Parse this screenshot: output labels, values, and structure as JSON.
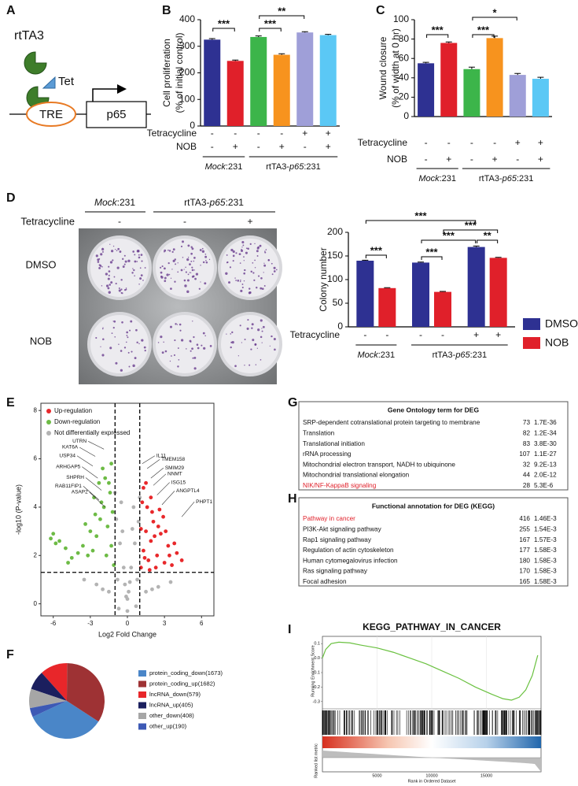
{
  "diagram": {
    "panel": "A",
    "protein": "rtTA3",
    "drug": "Tet",
    "promoter": "TRE",
    "gene": "p65"
  },
  "plate": {
    "panel": "D",
    "headers": [
      [
        {
          "text": "Mock",
          "italic": true
        },
        {
          "text": ":231"
        }
      ],
      [
        {
          "text": "rtTA3-"
        },
        {
          "text": "p65",
          "italic": true
        },
        {
          "text": ":231"
        }
      ]
    ],
    "row_label": "Tetracycline",
    "signs": [
      "-",
      "-",
      "+"
    ],
    "rows": [
      "DMSO",
      "NOB"
    ]
  },
  "chart_data": [
    {
      "type": "bar",
      "panel": "B",
      "ylabel": [
        "Cell proliferation",
        "(% of initial control)"
      ],
      "values": [
        325,
        245,
        335,
        268,
        352,
        342
      ],
      "errors": [
        4,
        3,
        4,
        4,
        3,
        3
      ],
      "colors": [
        "#2e3192",
        "#e0202a",
        "#3cb54a",
        "#f7931e",
        "#9f9fd8",
        "#5bc8f5"
      ],
      "ylim": [
        0,
        400
      ],
      "yticks": [
        0,
        100,
        200,
        300,
        400
      ],
      "rows": [
        {
          "label": "Tetracycline",
          "signs": [
            "-",
            "-",
            "-",
            "-",
            "+",
            "+"
          ]
        },
        {
          "label": "NOB",
          "signs": [
            "-",
            "+",
            "-",
            "+",
            "-",
            "+"
          ]
        }
      ],
      "groups": [
        [
          {
            "text": "Mock",
            "italic": true
          },
          {
            "text": ":231"
          }
        ],
        [
          {
            "text": "rtTA3-"
          },
          {
            "text": "p65",
            "italic": true
          },
          {
            "text": ":231"
          }
        ]
      ],
      "significance": [
        "***",
        "***",
        "**"
      ]
    },
    {
      "type": "bar",
      "panel": "C",
      "ylabel": [
        "Wound closure",
        "(% of width at 0 hr)"
      ],
      "values": [
        55,
        76,
        49,
        81,
        43,
        39
      ],
      "errors": [
        1,
        1,
        2,
        2,
        1.5,
        1.5
      ],
      "colors": [
        "#2e3192",
        "#e0202a",
        "#3cb54a",
        "#f7931e",
        "#9f9fd8",
        "#5bc8f5"
      ],
      "ylim": [
        0,
        100
      ],
      "yticks": [
        0,
        20,
        40,
        60,
        80,
        100
      ],
      "rows": [
        {
          "label": "Tetracycline",
          "signs": [
            "-",
            "-",
            "-",
            "-",
            "+",
            "+"
          ]
        },
        {
          "label": "NOB",
          "signs": [
            "-",
            "+",
            "-",
            "+",
            "-",
            "+"
          ]
        }
      ],
      "groups": [
        [
          {
            "text": "Mock",
            "italic": true
          },
          {
            "text": ":231"
          }
        ],
        [
          {
            "text": "rtTA3-"
          },
          {
            "text": "p65",
            "italic": true
          },
          {
            "text": ":231"
          }
        ]
      ],
      "significance": [
        "***",
        "***",
        "*"
      ]
    },
    {
      "type": "grouped_bar",
      "ylabel": "Colony number",
      "series": [
        {
          "name": "DMSO",
          "color": "#2e3192",
          "values": [
            140,
            136,
            169
          ],
          "errors": [
            1,
            1,
            2
          ]
        },
        {
          "name": "NOB",
          "color": "#e0202a",
          "values": [
            82,
            74,
            146
          ],
          "errors": [
            1,
            1,
            1
          ]
        }
      ],
      "ylim": [
        0,
        200
      ],
      "yticks": [
        0,
        50,
        100,
        150,
        200
      ],
      "rows": [
        {
          "label": "Tetracycline",
          "signs": [
            "-",
            "-",
            "-",
            "-",
            "+",
            "+"
          ]
        }
      ],
      "groups": [
        [
          {
            "text": "Mock",
            "italic": true
          },
          {
            "text": ":231"
          }
        ],
        [
          {
            "text": "rtTA3-"
          },
          {
            "text": "p65",
            "italic": true
          },
          {
            "text": ":231"
          }
        ]
      ],
      "significance": [
        "***",
        "***",
        "***",
        "**",
        "***",
        "***"
      ],
      "legend": "right"
    },
    {
      "type": "scatter",
      "panel": "E",
      "xlabel": "Log2 Fold Change",
      "ylabel": "-log10 (P-value)",
      "xlim": [
        -7,
        7
      ],
      "ylim": [
        -0.5,
        8.3
      ],
      "xticks": [
        -6,
        -3,
        0,
        3,
        6
      ],
      "yticks": [
        0,
        2,
        4,
        6,
        8
      ],
      "thresholds": {
        "x": [
          -1,
          1
        ],
        "y": 1.3
      },
      "legend": "top-left",
      "series": [
        {
          "name": "Up-regulation",
          "color": "#e8282b",
          "x": [
            1.1,
            1.3,
            1.5,
            1.7,
            1.9,
            2.1,
            2.4,
            2.7,
            3.0,
            3.3,
            3.6,
            4.0,
            4.4,
            1.2,
            1.6,
            2.0,
            2.5,
            3.1,
            3.8,
            1.4,
            2.2,
            2.9,
            1.8,
            1.1,
            1.3,
            1.9,
            2.6,
            3.4,
            1.5,
            2.3
          ],
          "values": [
            1.5,
            2.2,
            3.0,
            1.8,
            2.6,
            3.4,
            2.0,
            2.9,
            1.7,
            2.4,
            1.6,
            2.1,
            1.8,
            4.2,
            4.0,
            3.8,
            3.2,
            3.0,
            2.5,
            1.9,
            2.8,
            3.6,
            1.4,
            3.1,
            4.8,
            4.4,
            3.9,
            2.0,
            5.0,
            1.5
          ]
        },
        {
          "name": "Down-regulation",
          "color": "#6dbb45",
          "x": [
            -1.1,
            -1.3,
            -1.6,
            -1.9,
            -2.2,
            -2.5,
            -2.8,
            -3.2,
            -3.6,
            -4.0,
            -4.5,
            -5.0,
            -5.5,
            -6.0,
            -1.4,
            -1.8,
            -2.3,
            -2.7,
            -1.2,
            -3.0,
            -2.0,
            -1.5,
            -2.6,
            -1.7,
            -5.8,
            -4.8,
            -3.4,
            -2.1,
            -1.3,
            -6.2
          ],
          "values": [
            1.6,
            2.4,
            3.2,
            4.0,
            3.5,
            2.8,
            2.2,
            2.0,
            2.4,
            2.1,
            1.9,
            2.3,
            2.6,
            2.9,
            4.6,
            5.2,
            5.0,
            4.4,
            3.8,
            3.0,
            5.6,
            5.0,
            3.7,
            2.0,
            2.5,
            1.7,
            3.3,
            4.2,
            5.8,
            2.7
          ]
        },
        {
          "name": "Not differentially expressed",
          "color": "#b3b3b3",
          "x": [
            -0.9,
            -0.6,
            -0.3,
            0,
            0.3,
            0.6,
            0.9,
            -0.5,
            0.5,
            -0.8,
            0.8,
            -0.2,
            0.2,
            -1.5,
            1.5,
            -2.5,
            2.5,
            -3.5,
            3.5,
            -0.4,
            0.4,
            -0.7,
            0.7,
            0.1,
            -0.1,
            -1.0,
            1.0,
            -2.0,
            2.0,
            0
          ],
          "values": [
            3.5,
            2.5,
            1.5,
            0.2,
            1.5,
            2.5,
            3.4,
            4.2,
            4.0,
            1.0,
            1.0,
            0.8,
            0.9,
            0.5,
            0.5,
            0.8,
            0.7,
            1.0,
            0.9,
            3.0,
            3.1,
            -0.2,
            -0.1,
            0.5,
            0.3,
            4.6,
            4.4,
            0.6,
            0.6,
            -0.3
          ]
        }
      ],
      "annotations": [
        {
          "text": "UTRN",
          "x": -1.9,
          "y": 6.4
        },
        {
          "text": "KAT6A",
          "x": -2.6,
          "y": 6.1
        },
        {
          "text": "USP34",
          "x": -2.8,
          "y": 5.7
        },
        {
          "text": "ARHGAP5",
          "x": -2.4,
          "y": 5.2
        },
        {
          "text": "SHPRH",
          "x": -2.1,
          "y": 4.7
        },
        {
          "text": "RAB11FIP1",
          "x": -2.3,
          "y": 4.3
        },
        {
          "text": "ASAP2",
          "x": -1.8,
          "y": 4.0
        },
        {
          "text": "IL11",
          "x": 1.2,
          "y": 5.8
        },
        {
          "text": "TMEM158",
          "x": 1.6,
          "y": 5.6
        },
        {
          "text": "SMIM29",
          "x": 1.9,
          "y": 5.2
        },
        {
          "text": "NNMT",
          "x": 2.1,
          "y": 4.9
        },
        {
          "text": "ISG15",
          "x": 2.4,
          "y": 4.5
        },
        {
          "text": "ANGPTL4",
          "x": 2.8,
          "y": 4.1
        },
        {
          "text": "PHPT1",
          "x": 4.4,
          "y": 3.6
        }
      ]
    },
    {
      "type": "pie",
      "panel": "F",
      "categories": [
        "protein_coding_down(1673)",
        "protein_coding_up(1682)",
        "lncRNA_down(579)",
        "lncRNA_up(405)",
        "other_down(408)",
        "other_up(190)"
      ],
      "values": [
        1673,
        1682,
        579,
        405,
        408,
        190
      ],
      "colors": [
        "#4a86c8",
        "#9e3234",
        "#e8262a",
        "#1b1f5e",
        "#a6a6a6",
        "#3d59b5"
      ]
    },
    {
      "type": "gsea",
      "panel": "I",
      "title": "KEGG_PATHWAY_IN_CANCER",
      "ylabel": "Running Enrichment Score",
      "ylabel2": "Ranked list metric",
      "xlabel": "Rank in Ordered Dataset",
      "x": [
        0,
        300,
        800,
        1500,
        2500,
        3500,
        5000,
        6500,
        8000,
        9500,
        11000,
        12500,
        14000,
        15500,
        16500,
        17300,
        18000,
        18600,
        19200,
        19700
      ],
      "values": [
        0,
        0.06,
        0.1,
        0.11,
        0.105,
        0.09,
        0.07,
        0.04,
        0.0,
        -0.04,
        -0.09,
        -0.14,
        -0.2,
        -0.25,
        -0.28,
        -0.29,
        -0.27,
        -0.22,
        -0.12,
        0.02
      ],
      "color": "#6ac140",
      "xlim": [
        0,
        20000
      ],
      "xticks": [
        5000,
        10000,
        15000
      ],
      "ylim": [
        -0.35,
        0.15
      ],
      "yticks": [
        -0.3,
        -0.2,
        -0.1,
        {
          "value": 0,
          "label": "0.0"
        },
        0.1
      ]
    }
  ],
  "tables": [
    {
      "panel": "G",
      "title": "Gene Ontology term for DEG",
      "highlight_color": "#e0202a",
      "rows": [
        {
          "term": "SRP-dependent cotranslational protein targeting to membrane",
          "count": 73,
          "p": "1.7E-36"
        },
        {
          "term": "Translation",
          "count": 82,
          "p": "1.2E-34"
        },
        {
          "term": "Translational initiation",
          "count": 83,
          "p": "3.8E-30"
        },
        {
          "term": "rRNA processing",
          "count": 107,
          "p": "1.1E-27"
        },
        {
          "term": "Mitochondrial electron transport, NADH to ubiquinone",
          "count": 32,
          "p": "9.2E-13"
        },
        {
          "term": "Mitochondrial translational elongation",
          "count": 44,
          "p": "2.0E-12"
        },
        {
          "term": "NIK/NF-KappaB signaling",
          "count": 28,
          "p": "5.3E-6",
          "highlight": true
        }
      ]
    },
    {
      "panel": "H",
      "title": "Functional annotation for DEG (KEGG)",
      "highlight_color": "#e0202a",
      "rows": [
        {
          "term": "Pathway in cancer",
          "count": 416,
          "p": "1.46E-3",
          "highlight": true
        },
        {
          "term": "PI3K-Akt signaling pathway",
          "count": 255,
          "p": "1.54E-3"
        },
        {
          "term": "Rap1 signaling pathway",
          "count": 167,
          "p": "1.57E-3"
        },
        {
          "term": "Regulation of actin cytoskeleton",
          "count": 177,
          "p": "1.58E-3"
        },
        {
          "term": "Human cytomegalovirus infection",
          "count": 180,
          "p": "1.58E-3"
        },
        {
          "term": "Ras signaling pathway",
          "count": 170,
          "p": "1.58E-3"
        },
        {
          "term": "Focal adhesion",
          "count": 165,
          "p": "1.58E-3"
        }
      ]
    }
  ]
}
